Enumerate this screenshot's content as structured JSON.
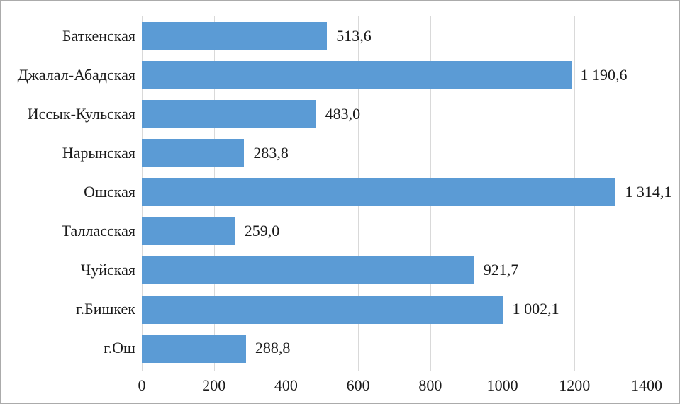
{
  "chart_data": {
    "type": "bar",
    "orientation": "horizontal",
    "title": "",
    "categories": [
      "Баткенская",
      "Джалал-Абадская",
      "Иссык-Кульская",
      "Нарынская",
      "Ошская",
      "Талласская",
      "Чуйская",
      "г.Бишкек",
      "г.Ош"
    ],
    "values": [
      513.6,
      1190.6,
      483.0,
      283.8,
      1314.1,
      259.0,
      921.7,
      1002.1,
      288.8
    ],
    "value_labels": [
      "513,6",
      "1 190,6",
      "483,0",
      "283,8",
      "1 314,1",
      "259,0",
      "921,7",
      "1 002,1",
      "288,8"
    ],
    "x_ticks": [
      0,
      200,
      400,
      600,
      800,
      1000,
      1200,
      1400
    ],
    "x_tick_labels": [
      "0",
      "200",
      "400",
      "600",
      "800",
      "1000",
      "1200",
      "1400"
    ],
    "xlim": [
      0,
      1400
    ],
    "grid": true,
    "legend": "none",
    "colors": {
      "bar": "#5b9bd5",
      "gridline": "#d9d9d9",
      "text": "#1a1a1a",
      "border": "#ababab",
      "background": "#ffffff"
    }
  }
}
